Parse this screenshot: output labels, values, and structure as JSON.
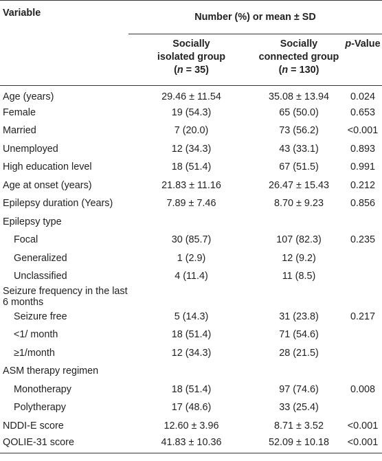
{
  "header": {
    "variable": "Variable",
    "group_span": "Number (%) or mean ± SD",
    "col1_line1": "Socially",
    "col1_line2": "isolated group",
    "col1_n_prefix": "(",
    "col1_n_italic": "n",
    "col1_n_suffix": " = 35)",
    "col2_line1": "Socially",
    "col2_line2": "connected group",
    "col2_n_prefix": "(",
    "col2_n_italic": "n",
    "col2_n_suffix": " = 130)",
    "p_italic": "p",
    "p_suffix": "-Value"
  },
  "rows": [
    {
      "label": "Age (years)",
      "c1": "29.46 ± 11.54",
      "c2": "35.08 ± 13.94",
      "p": "0.024"
    },
    {
      "label": "Female",
      "c1": "19 (54.3)",
      "c2": "65 (50.0)",
      "p": "0.653"
    },
    {
      "label": "Married",
      "c1": "7 (20.0)",
      "c2": "73 (56.2)",
      "p": "<0.001"
    },
    {
      "label": "Unemployed",
      "c1": "12 (34.3)",
      "c2": "43 (33.1)",
      "p": "0.893"
    },
    {
      "label": "High education level",
      "c1": "18 (51.4)",
      "c2": "67 (51.5)",
      "p": "0.991"
    },
    {
      "label": "Age at onset (years)",
      "c1": "21.83 ± 11.16",
      "c2": "26.47 ± 15.43",
      "p": "0.212"
    },
    {
      "label": "Epilepsy duration (Years)",
      "c1": "7.89 ± 7.46",
      "c2": "8.70 ± 9.23",
      "p": "0.856"
    },
    {
      "label": "Epilepsy type",
      "c1": "",
      "c2": "",
      "p": ""
    },
    {
      "label": "Focal",
      "c1": "30 (85.7)",
      "c2": "107 (82.3)",
      "p": "0.235",
      "sub": true
    },
    {
      "label": "Generalized",
      "c1": "1 (2.9)",
      "c2": "12 (9.2)",
      "p": "",
      "sub": true
    },
    {
      "label": "Unclassified",
      "c1": "4 (11.4)",
      "c2": "11 (8.5)",
      "p": "",
      "sub": true
    },
    {
      "label": "Seizure frequency in the last 6 months",
      "c1": "",
      "c2": "",
      "p": ""
    },
    {
      "label": "Seizure free",
      "c1": "5 (14.3)",
      "c2": "31 (23.8)",
      "p": "0.217",
      "sub": true
    },
    {
      "label": "<1/ month",
      "c1": "18 (51.4)",
      "c2": "71 (54.6)",
      "p": "",
      "sub": true
    },
    {
      "label": "≥1/month",
      "c1": "12 (34.3)",
      "c2": "28 (21.5)",
      "p": "",
      "sub": true
    },
    {
      "label": "ASM therapy regimen",
      "c1": "",
      "c2": "",
      "p": ""
    },
    {
      "label": "Monotherapy",
      "c1": "18 (51.4)",
      "c2": "97 (74.6)",
      "p": "0.008",
      "sub": true
    },
    {
      "label": "Polytherapy",
      "c1": "17 (48.6)",
      "c2": "33 (25.4)",
      "p": "",
      "sub": true
    },
    {
      "label": "NDDI-E score",
      "c1": "12.60 ± 3.96",
      "c2": "8.71 ± 3.52",
      "p": "<0.001"
    },
    {
      "label": "QOLIE-31 score",
      "c1": "41.83 ± 10.36",
      "c2": "52.09 ± 10.18",
      "p": "<0.001"
    }
  ]
}
